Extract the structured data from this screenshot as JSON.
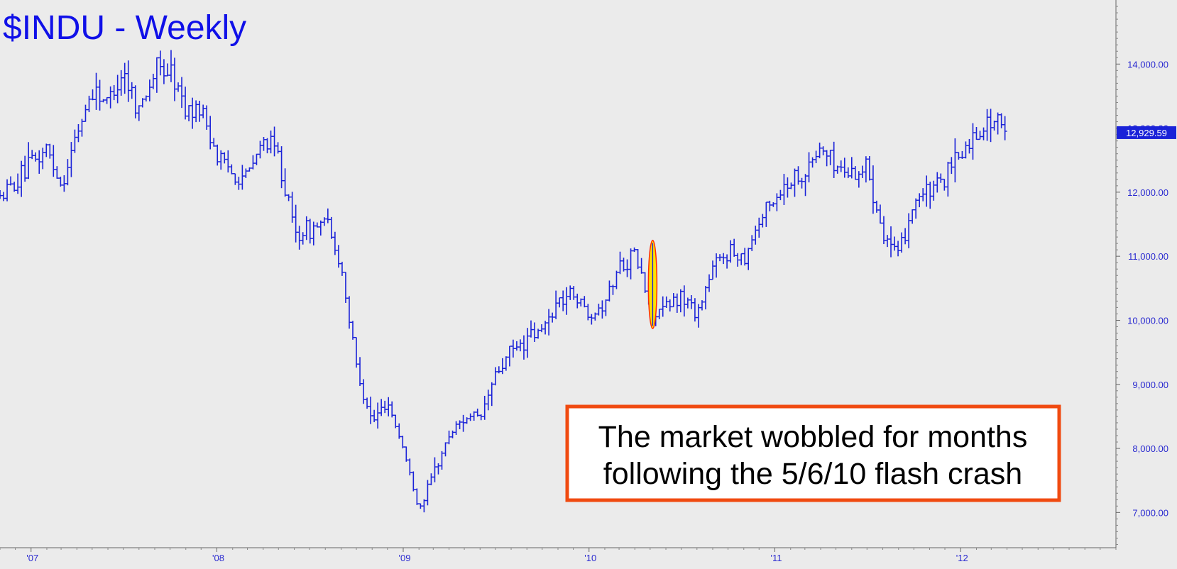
{
  "chart_data": {
    "type": "ohlc-bar",
    "title": "$INDU - Weekly",
    "x_tick_labels": [
      "'07",
      "'08",
      "'09",
      "'10",
      "'11",
      "'12"
    ],
    "y_tick_labels": [
      "7,000.00",
      "8,000.00",
      "9,000.00",
      "10,000.00",
      "11,000.00",
      "12,000.00",
      "13,000.00",
      "14,000.00"
    ],
    "ylim": [
      6450,
      15000
    ],
    "xlim": [
      "2006-11",
      "2012-11"
    ],
    "last_price_label": "12,929.59",
    "last_price": 12929.59,
    "annotation": {
      "line1": "The market wobbled for months",
      "line2": "following the 5/6/10 flash crash"
    },
    "highlight": {
      "date": "2010-05-06",
      "low": 9870,
      "high": 11250
    },
    "series": [
      {
        "values": [
          [
            "2006-11",
            11900
          ],
          [
            "2007-01",
            12400
          ],
          [
            "2007-02",
            12700
          ],
          [
            "2007-03",
            12100
          ],
          [
            "2007-04",
            12900
          ],
          [
            "2007-05",
            13600
          ],
          [
            "2007-06",
            13400
          ],
          [
            "2007-07",
            13900
          ],
          [
            "2007-08",
            13300
          ],
          [
            "2007-09",
            13900
          ],
          [
            "2007-10",
            13900
          ],
          [
            "2007-11",
            13300
          ],
          [
            "2007-12",
            13300
          ],
          [
            "2008-01",
            12600
          ],
          [
            "2008-02",
            12300
          ],
          [
            "2008-03",
            12250
          ],
          [
            "2008-04",
            12800
          ],
          [
            "2008-05",
            12600
          ],
          [
            "2008-06",
            11350
          ],
          [
            "2008-07",
            11400
          ],
          [
            "2008-08",
            11550
          ],
          [
            "2008-09",
            10850
          ],
          [
            "2008-10",
            9300
          ],
          [
            "2008-11",
            8400
          ],
          [
            "2008-12",
            8750
          ],
          [
            "2009-01",
            8000
          ],
          [
            "2009-02",
            7050
          ],
          [
            "2009-03",
            7600
          ],
          [
            "2009-04",
            8200
          ],
          [
            "2009-05",
            8500
          ],
          [
            "2009-06",
            8450
          ],
          [
            "2009-07",
            9150
          ],
          [
            "2009-08",
            9500
          ],
          [
            "2009-09",
            9700
          ],
          [
            "2009-10",
            9850
          ],
          [
            "2009-11",
            10300
          ],
          [
            "2009-12",
            10450
          ],
          [
            "2010-01",
            10100
          ],
          [
            "2010-02",
            10300
          ],
          [
            "2010-03",
            10850
          ],
          [
            "2010-04",
            11050
          ],
          [
            "2010-05",
            10200
          ],
          [
            "2010-06",
            10150
          ],
          [
            "2010-07",
            10400
          ],
          [
            "2010-08",
            10100
          ],
          [
            "2010-09",
            10800
          ],
          [
            "2010-10",
            11100
          ],
          [
            "2010-11",
            11000
          ],
          [
            "2010-12",
            11550
          ],
          [
            "2011-01",
            11900
          ],
          [
            "2011-02",
            12200
          ],
          [
            "2011-03",
            12300
          ],
          [
            "2011-04",
            12700
          ],
          [
            "2011-05",
            12400
          ],
          [
            "2011-06",
            12300
          ],
          [
            "2011-07",
            12400
          ],
          [
            "2011-08",
            11400
          ],
          [
            "2011-09",
            10950
          ],
          [
            "2011-10",
            11900
          ],
          [
            "2011-11",
            12000
          ],
          [
            "2011-12",
            12200
          ],
          [
            "2012-01",
            12600
          ],
          [
            "2012-02",
            12900
          ],
          [
            "2012-03",
            13150
          ],
          [
            "2012-04",
            12929.59
          ]
        ]
      }
    ]
  },
  "colors": {
    "background": "#ebebeb",
    "series": "#1a22d8",
    "title": "#1010e8",
    "axis_text": "#2a2ad0",
    "annotation_border": "#f04a10",
    "highlight_fill": "#ffe200",
    "highlight_stroke": "#ff2a00"
  }
}
